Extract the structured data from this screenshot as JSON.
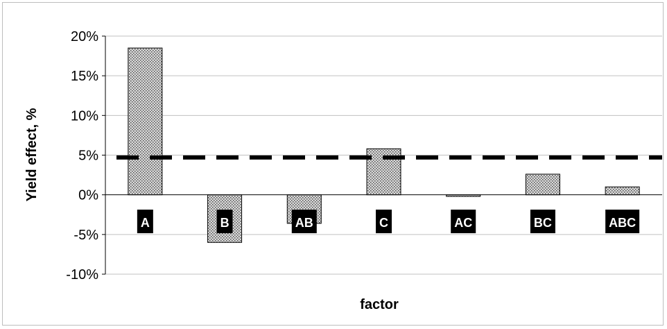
{
  "chart_data": {
    "type": "bar",
    "title": "",
    "xlabel": "factor",
    "ylabel": "Yield effect, %",
    "categories": [
      "A",
      "B",
      "AB",
      "C",
      "AC",
      "BC",
      "ABC"
    ],
    "values": [
      18.5,
      -6.0,
      -3.6,
      5.8,
      -0.2,
      2.6,
      1.0
    ],
    "ylim": [
      -10,
      20
    ],
    "yticks": [
      20,
      15,
      10,
      5,
      0,
      -5,
      -10
    ],
    "ytick_labels": [
      "20%",
      "15%",
      "10%",
      "5%",
      "0%",
      "-5%",
      "-10%"
    ],
    "threshold_line": 4.7,
    "grid": true,
    "legend": "none",
    "colors": {
      "bar_fill": "#c8c8c8",
      "bar_dot": "#555555",
      "threshold": "#000000",
      "grid": "#c0c0c0",
      "label_bg": "#000000"
    }
  }
}
